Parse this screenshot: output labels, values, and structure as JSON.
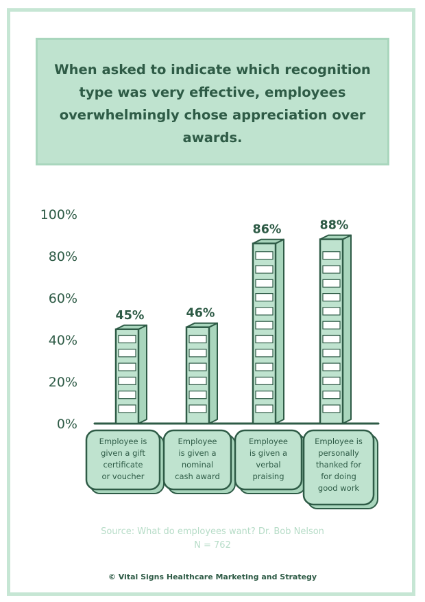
{
  "header": {
    "title": "When asked to indicate which recognition type was very effective, employees overwhelmingly chose appreciation over awards."
  },
  "chart_data": {
    "type": "bar",
    "categories": [
      "Employee is given a gift certificate or voucher",
      "Employee is given a nominal cash award",
      "Employee is given a verbal praising",
      "Employee is personally thanked for for doing good work"
    ],
    "category_lines": [
      [
        "Employee is",
        "given a gift",
        "certificate",
        "or voucher"
      ],
      [
        "Employee",
        "is given a",
        "nominal",
        "cash award"
      ],
      [
        "Employee",
        "is given a",
        "verbal",
        "praising"
      ],
      [
        "Employee is",
        "personally",
        "thanked for",
        "for doing",
        "good work"
      ]
    ],
    "values": [
      45,
      46,
      86,
      88
    ],
    "data_labels": [
      "45%",
      "46%",
      "86%",
      "88%"
    ],
    "yticks": [
      "0%",
      "20%",
      "40%",
      "60%",
      "80%",
      "100%"
    ],
    "ylim": [
      0,
      100
    ],
    "grid": false,
    "colors": {
      "bar_fill": "#bfe3cf",
      "bar_side": "#a9d6bd",
      "outline": "#2e5b46",
      "stripe": "#ffffff"
    }
  },
  "footer": {
    "source": "Source: What do employees want? Dr. Bob Nelson",
    "n": "N = 762",
    "copyright": "© Vital Signs Healthcare Marketing and Strategy"
  }
}
